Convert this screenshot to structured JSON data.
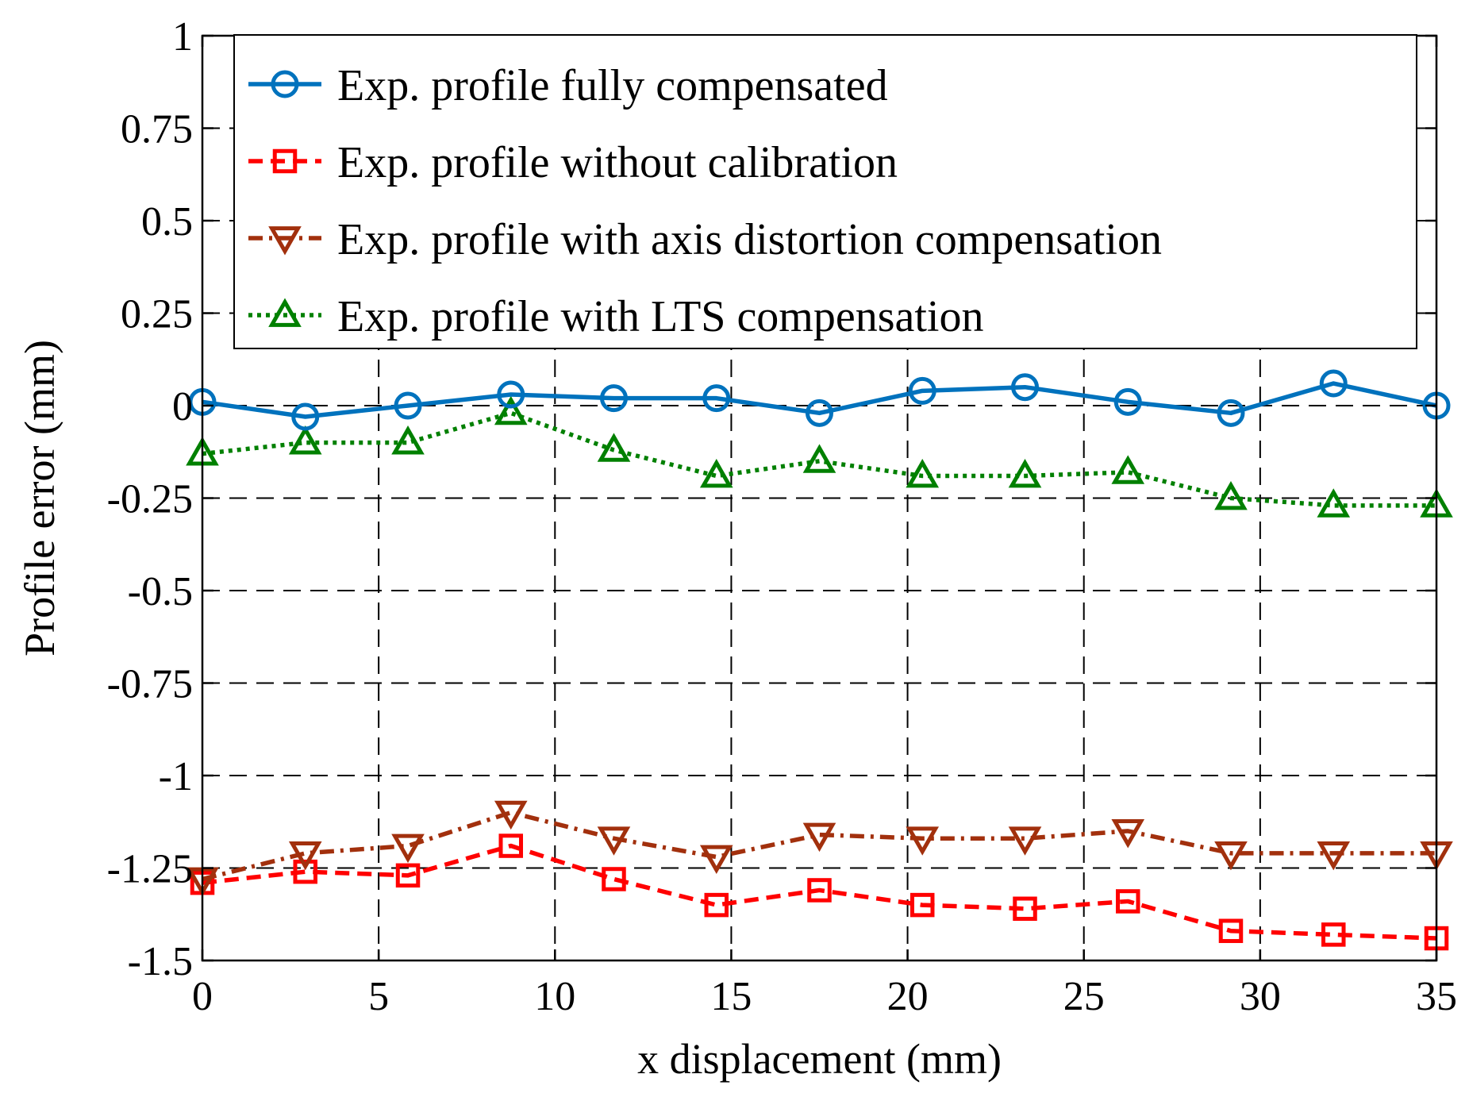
{
  "chart_data": {
    "type": "line",
    "title": "",
    "xlabel": "x displacement (mm)",
    "ylabel": "Profile error (mm)",
    "xlim": [
      0,
      35
    ],
    "ylim": [
      -1.5,
      1
    ],
    "xticks": [
      0,
      5,
      10,
      15,
      20,
      25,
      30,
      35
    ],
    "xtick_labels": [
      "0",
      "5",
      "10",
      "15",
      "20",
      "25",
      "30",
      "35"
    ],
    "yticks": [
      1,
      0.75,
      0.5,
      0.25,
      0,
      -0.25,
      -0.5,
      -0.75,
      -1,
      -1.25,
      -1.5
    ],
    "ytick_labels": [
      "1",
      "0.75",
      "0.5",
      "0.25",
      "0",
      "-0.25",
      "-0.5",
      "-0.75",
      "-1",
      "-1.25",
      "-1.5"
    ],
    "grid": true,
    "legend_position": "top-right",
    "x": [
      0,
      2.92,
      5.83,
      8.75,
      11.67,
      14.58,
      17.5,
      20.42,
      23.33,
      26.25,
      29.17,
      32.08,
      35
    ],
    "series": [
      {
        "name": "Exp. profile fully compensated",
        "color": "#0072BD",
        "marker": "circle",
        "line_style": "solid",
        "values": [
          0.01,
          -0.03,
          0.0,
          0.03,
          0.02,
          0.02,
          -0.02,
          0.04,
          0.05,
          0.01,
          -0.02,
          0.06,
          0.0
        ]
      },
      {
        "name": "Exp. profile without calibration",
        "color": "#FF0000",
        "marker": "square",
        "line_style": "dashed",
        "values": [
          -1.29,
          -1.26,
          -1.27,
          -1.19,
          -1.28,
          -1.35,
          -1.31,
          -1.35,
          -1.36,
          -1.34,
          -1.42,
          -1.43,
          -1.44
        ]
      },
      {
        "name": "Exp. profile with axis distortion compensation",
        "color": "#A2300D",
        "marker": "triangle-down",
        "line_style": "dashdot",
        "values": [
          -1.28,
          -1.21,
          -1.19,
          -1.1,
          -1.17,
          -1.22,
          -1.16,
          -1.17,
          -1.17,
          -1.15,
          -1.21,
          -1.21,
          -1.21
        ]
      },
      {
        "name": "Exp. profile with LTS compensation",
        "color": "#008000",
        "marker": "triangle-up",
        "line_style": "dotted",
        "values": [
          -0.13,
          -0.1,
          -0.1,
          -0.02,
          -0.12,
          -0.19,
          -0.15,
          -0.19,
          -0.19,
          -0.18,
          -0.25,
          -0.27,
          -0.27
        ]
      }
    ]
  }
}
